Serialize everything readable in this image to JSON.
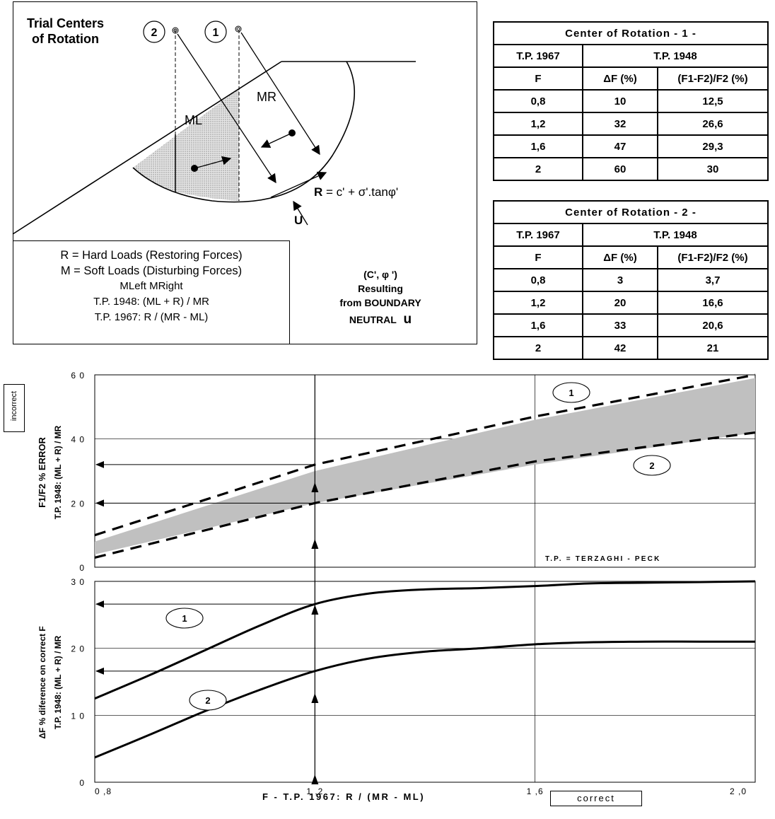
{
  "diagram": {
    "title": "Trial Centers\nof Rotation",
    "center_label_1": "1",
    "center_label_2": "2",
    "ml_label": "ML",
    "mr_label": "MR",
    "r_formula_prefix": "R",
    "r_formula_rest": " = c' + σ'.tanφ'",
    "u_label": "U"
  },
  "legend": {
    "lines": [
      "R = Hard Loads (Restoring Forces)",
      "M = Soft Loads (Disturbing Forces)",
      "MLeft    MRight",
      "T.P. 1948: (ML + R) / MR",
      "T.P. 1967: R / (MR - ML)"
    ]
  },
  "note": {
    "line1": "(C', φ ')",
    "line2": "Resulting",
    "line3": "from BOUNDARY",
    "line4": "NEUTRAL",
    "line4_symbol": "u"
  },
  "tables": [
    {
      "title": "Center of Rotation - 1 -",
      "group_left": "T.P. 1967",
      "group_right": "T.P. 1948",
      "headers": [
        "F",
        "ΔF (%)",
        "(F1-F2)/F2 (%)"
      ],
      "rows": [
        [
          "0,8",
          "10",
          "12,5"
        ],
        [
          "1,2",
          "32",
          "26,6"
        ],
        [
          "1,6",
          "47",
          "29,3"
        ],
        [
          "2",
          "60",
          "30"
        ]
      ]
    },
    {
      "title": "Center of Rotation - 2 -",
      "group_left": "T.P. 1967",
      "group_right": "T.P. 1948",
      "headers": [
        "F",
        "ΔF (%)",
        "(F1-F2)/F2 (%)"
      ],
      "rows": [
        [
          "0,8",
          "3",
          "3,7"
        ],
        [
          "1,2",
          "20",
          "16,6"
        ],
        [
          "1,6",
          "33",
          "20,6"
        ],
        [
          "2",
          "42",
          "21"
        ]
      ]
    }
  ],
  "charts": {
    "tag_incorrect": "incorrect",
    "tag_correct": "correct",
    "tp_note": "T.P. = TERZAGHI - PECK",
    "upper_ylabel_1": "F1/F2 % ERROR",
    "upper_ylabel_2": "T.P. 1948: (ML + R) / MR",
    "lower_ylabel_1": "ΔF % diference on correct F",
    "lower_ylabel_2": "T.P. 1948: (ML + R) / MR",
    "xlabel": "F - T.P. 1967: R / (MR - ML)",
    "series_badge_1": "1",
    "series_badge_2": "2",
    "upper_yticks": [
      "6 0",
      "4 0",
      "2 0",
      "0"
    ],
    "lower_yticks": [
      "3 0",
      "2 0",
      "1 0",
      "0"
    ],
    "xticks": [
      "0 ,8",
      "1 ,2",
      "1 ,6",
      "2 ,0"
    ]
  },
  "chart_data": [
    {
      "type": "line",
      "xlim": [
        0.8,
        2.0
      ],
      "ylim": [
        0,
        60
      ],
      "grid": true,
      "series": [
        {
          "name": "1",
          "x": [
            0.8,
            1.2,
            1.6,
            2.0
          ],
          "y": [
            10,
            32,
            47,
            60
          ],
          "style": "dashed"
        },
        {
          "name": "2",
          "x": [
            0.8,
            1.2,
            1.6,
            2.0
          ],
          "y": [
            3,
            20,
            33,
            42
          ],
          "style": "dashed"
        }
      ],
      "band": {
        "x": [
          0.8,
          1.2,
          1.6,
          2.0
        ],
        "upper": [
          8,
          30,
          46,
          59
        ],
        "lower": [
          4,
          20,
          32,
          42
        ],
        "color": "#c0c0c0"
      },
      "annotations": [
        {
          "x": 1.2,
          "y": 32
        },
        {
          "x": 1.2,
          "y": 20
        }
      ]
    },
    {
      "type": "line",
      "xlim": [
        0.8,
        2.0
      ],
      "ylim": [
        0,
        30
      ],
      "grid": true,
      "series": [
        {
          "name": "1",
          "x": [
            0.8,
            0.9,
            1.0,
            1.1,
            1.2,
            1.3,
            1.4,
            1.5,
            1.6,
            1.7,
            1.8,
            1.9,
            2.0
          ],
          "y": [
            12.5,
            16,
            19.7,
            23.4,
            26.6,
            28.2,
            28.8,
            29.0,
            29.3,
            29.7,
            29.8,
            29.9,
            30.0
          ]
        },
        {
          "name": "2",
          "x": [
            0.8,
            0.9,
            1.0,
            1.1,
            1.2,
            1.3,
            1.4,
            1.5,
            1.6,
            1.7,
            1.8,
            1.9,
            2.0
          ],
          "y": [
            3.7,
            7.1,
            10.6,
            13.8,
            16.6,
            18.5,
            19.5,
            20.0,
            20.6,
            20.9,
            21.0,
            21.0,
            21.0
          ]
        }
      ],
      "annotations": [
        {
          "x": 1.2,
          "y": 26.6
        },
        {
          "x": 1.2,
          "y": 16.6
        }
      ]
    }
  ]
}
